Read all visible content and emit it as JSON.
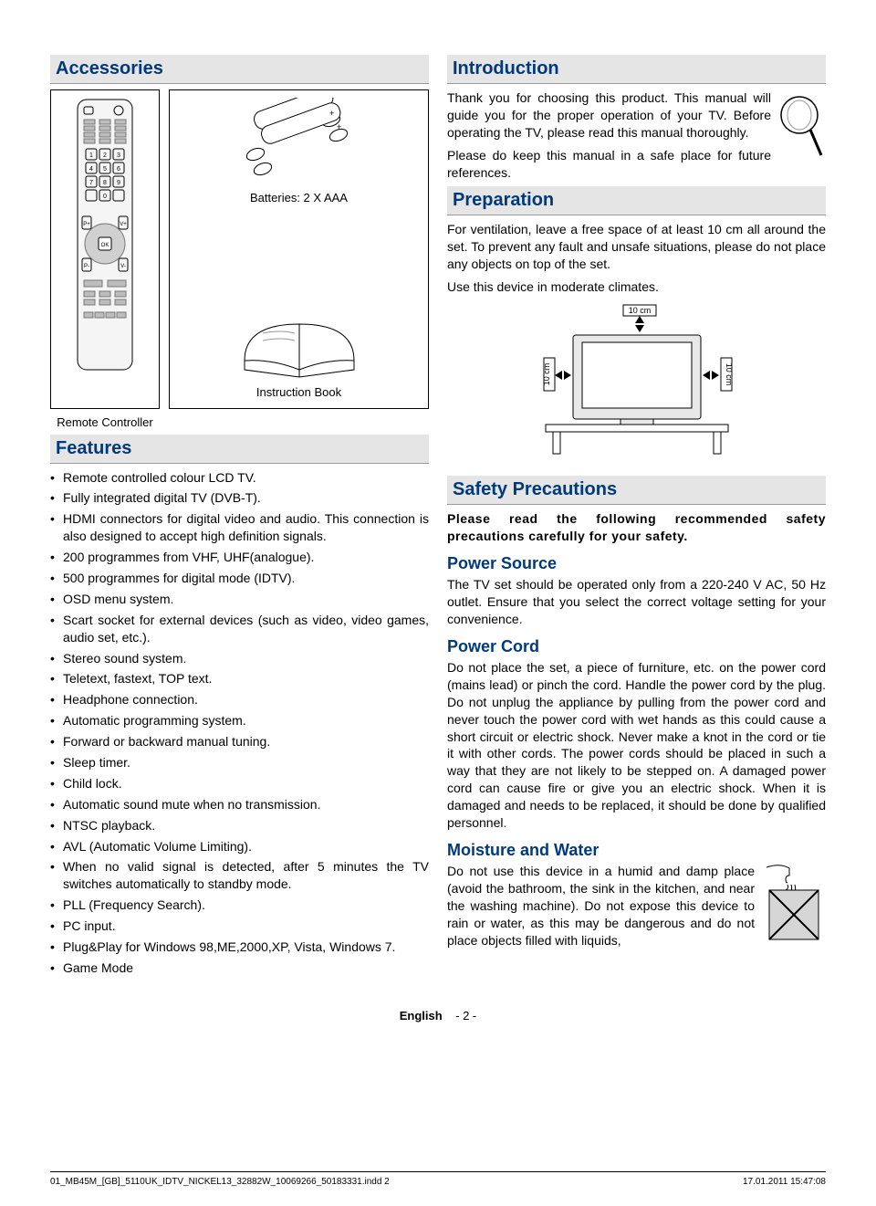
{
  "colors": {
    "heading_bg": "#e5e5e5",
    "heading_underline": "#999999",
    "heading_text": "#003a7a",
    "body_text": "#000000",
    "page_bg": "#ffffff"
  },
  "typography": {
    "heading_fontsize_pt": 20,
    "subheading_fontsize_pt": 18,
    "body_fontsize_pt": 14,
    "footer_fontsize_pt": 10
  },
  "left": {
    "accessories": {
      "heading": "Accessories",
      "batteries_label": "Batteries: 2 X AAA",
      "instruction_book_label": "Instruction Book",
      "remote_label": "Remote Controller"
    },
    "features": {
      "heading": "Features",
      "items": [
        "Remote controlled colour LCD TV.",
        "Fully integrated digital TV (DVB-T).",
        "HDMI connectors for digital video and audio. This connection is also designed to accept high definition signals.",
        "200 programmes from VHF, UHF(analogue).",
        "500 programmes for digital mode (IDTV).",
        "OSD menu system.",
        "Scart socket for external devices (such as video, video games, audio set, etc.).",
        "Stereo sound system.",
        "Teletext, fastext, TOP text.",
        "Headphone connection.",
        "Automatic programming system.",
        "Forward or backward manual tuning.",
        "Sleep timer.",
        "Child lock.",
        "Automatic sound mute when no transmission.",
        "NTSC playback.",
        "AVL (Automatic Volume Limiting).",
        "When no valid signal is detected, after 5 minutes the TV switches automatically to standby mode.",
        "PLL (Frequency Search).",
        "PC input.",
        "Plug&Play for Windows 98,ME,2000,XP, Vista, Windows 7.",
        "Game Mode"
      ]
    }
  },
  "right": {
    "introduction": {
      "heading": "Introduction",
      "p1": "Thank you for choosing this product. This manual will guide you for the proper operation of your TV. Before operating the TV, please read this manual thoroughly.",
      "p2": "Please do keep this manual in a safe place for future references."
    },
    "preparation": {
      "heading": "Preparation",
      "p1": "For ventilation, leave a free space of at least 10 cm all around the set. To prevent any fault and unsafe situations, please do not place any objects on top of the set.",
      "p2": "Use this device in moderate climates.",
      "clearance": {
        "top_label": "10 cm",
        "left_label": "10 cm",
        "right_label": "10 cm"
      }
    },
    "safety": {
      "heading": "Safety Precautions",
      "intro": "Please read the following recommended safety precautions carefully for your safety.",
      "power_source": {
        "heading": "Power Source",
        "body": "The TV set should be operated only from a 220-240 V AC, 50 Hz outlet. Ensure that you select the correct voltage setting for your convenience."
      },
      "power_cord": {
        "heading": "Power Cord",
        "body": "Do not place the set, a piece of furniture, etc. on the power cord (mains lead) or pinch the cord. Handle the power cord by the plug. Do not unplug the appliance by pulling from the power cord and never touch the power cord with wet hands as this could cause a short circuit or electric shock. Never make a knot in the cord or tie it with other cords. The power cords should be placed in such a way that they are not likely to be stepped on. A damaged power cord can cause fire or give you an electric shock. When it is damaged and needs to be replaced, it should be done by qualified personnel."
      },
      "moisture": {
        "heading": "Moisture and Water",
        "body": "Do not use this device in a humid and damp place (avoid the bathroom, the sink in the kitchen, and near the washing machine). Do not expose this device to rain or water, as this may be dangerous and do not place objects filled with liquids,"
      }
    }
  },
  "footer": {
    "center_lang": "English",
    "center_page": "- 2 -",
    "indd_line": "01_MB45M_[GB]_5110UK_IDTV_NICKEL13_32882W_10069266_50183331.indd   2",
    "date": "17.01.2011   15:47:08"
  }
}
